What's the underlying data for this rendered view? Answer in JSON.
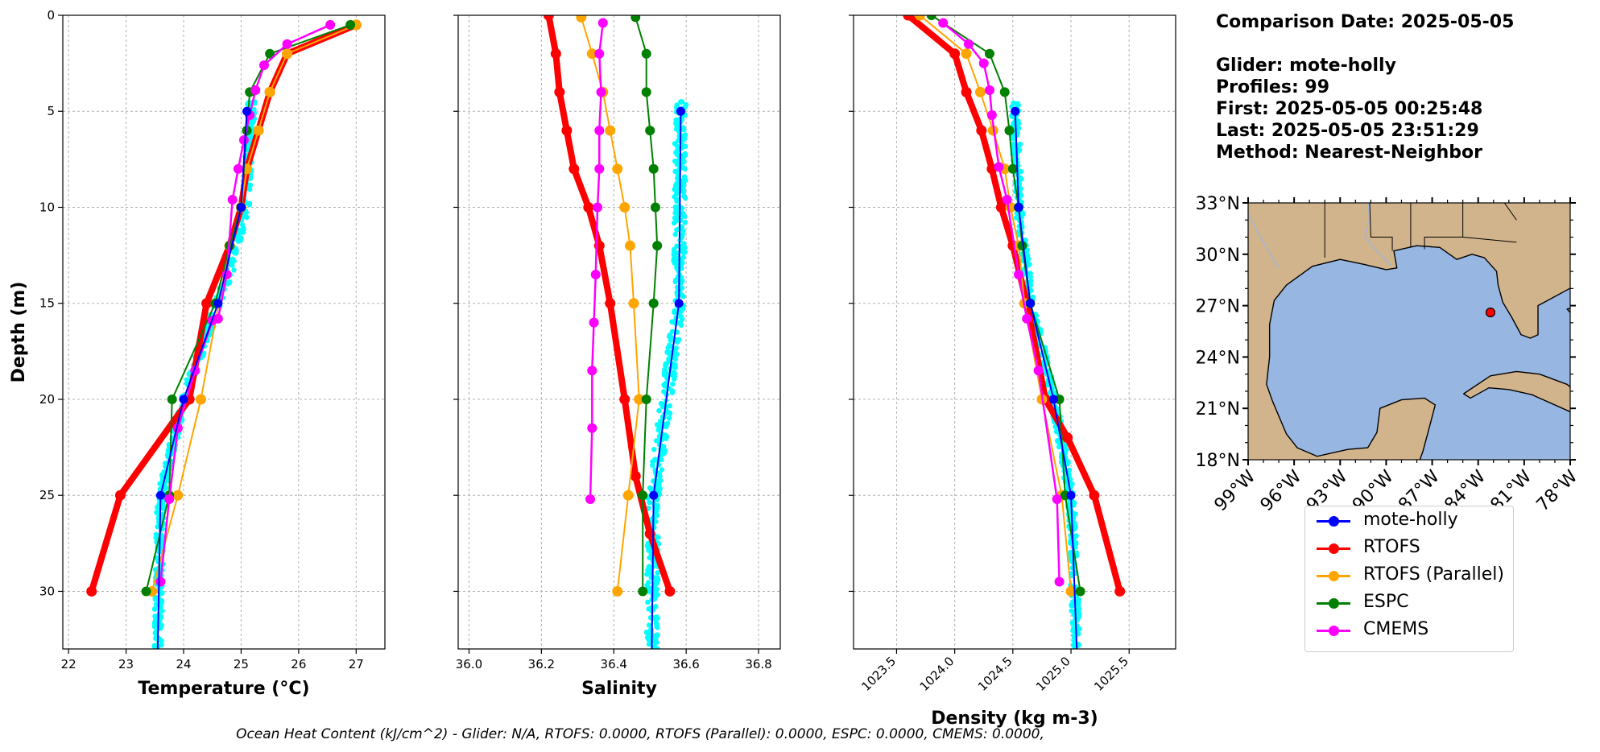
{
  "info": {
    "comparison_date": "Comparison Date: 2025-05-05",
    "glider": "Glider: mote-holly",
    "profiles": "Profiles: 99",
    "first": "First: 2025-05-05 00:25:48",
    "last": "Last: 2025-05-05 23:51:29",
    "method": "Method: Nearest-Neighbor"
  },
  "footer": "Ocean Heat Content (kJ/cm^2) - Glider: N/A,  RTOFS: 0.0000,  RTOFS (Parallel): 0.0000,  ESPC: 0.0000,  CMEMS: 0.0000,",
  "colors": {
    "mote_holly": "#0000ff",
    "rtofs": "#ff0000",
    "rtofs_parallel": "#ffa500",
    "espc": "#008000",
    "cmems": "#ff00ff",
    "glider_points": "#00ffff",
    "ocean": "#97b6e1",
    "land": "#d2b48c"
  },
  "legend": [
    {
      "name": "mote-holly",
      "color": "#0000ff"
    },
    {
      "name": "RTOFS",
      "color": "#ff0000"
    },
    {
      "name": "RTOFS (Parallel)",
      "color": "#ffa500"
    },
    {
      "name": "ESPC",
      "color": "#008000"
    },
    {
      "name": "CMEMS",
      "color": "#ff00ff"
    }
  ],
  "chart_data": [
    {
      "type": "line",
      "xlabel": "Temperature (°C)",
      "ylabel": "Depth (m)",
      "xlim": [
        21.9,
        27.5
      ],
      "ylim": [
        33,
        0
      ],
      "xticks": [
        22,
        23,
        24,
        25,
        26,
        27
      ],
      "yticks": [
        0,
        5,
        10,
        15,
        20,
        25,
        30
      ],
      "grid": true,
      "series": [
        {
          "name": "mote-holly",
          "x": [
            25.1,
            25.0,
            24.6,
            24.0,
            23.6,
            23.55
          ],
          "y": [
            5,
            10,
            15,
            20,
            25,
            33
          ]
        },
        {
          "name": "RTOFS",
          "x": [
            27.0,
            25.8,
            25.5,
            25.3,
            25.1,
            25.0,
            24.8,
            24.4,
            24.1,
            22.9,
            22.4
          ],
          "y": [
            0.5,
            2,
            4,
            6,
            8,
            10,
            12,
            15,
            20,
            25,
            30
          ]
        },
        {
          "name": "RTOFS (Parallel)",
          "x": [
            27.0,
            25.8,
            25.5,
            25.3,
            25.1,
            25.0,
            24.8,
            24.3,
            23.9,
            23.45
          ],
          "y": [
            0.5,
            2,
            4,
            6,
            8,
            10,
            12,
            20,
            25,
            30
          ]
        },
        {
          "name": "ESPC",
          "x": [
            26.9,
            25.5,
            25.15,
            25.1,
            25.0,
            24.8,
            24.55,
            23.8,
            23.75,
            23.35
          ],
          "y": [
            0.5,
            2,
            4,
            6,
            10,
            12,
            15,
            20,
            25,
            30
          ]
        },
        {
          "name": "CMEMS",
          "x": [
            26.55,
            25.8,
            25.4,
            25.25,
            25.15,
            25.05,
            24.95,
            24.85,
            24.75,
            24.6,
            24.5,
            24.2,
            23.9,
            23.75,
            23.6
          ],
          "y": [
            0.5,
            1.5,
            2.6,
            3.9,
            5.2,
            6.5,
            8.0,
            9.6,
            13.5,
            15.8,
            15.9,
            18.5,
            21.5,
            25.2,
            29.5
          ]
        }
      ]
    },
    {
      "type": "line",
      "xlabel": "Salinity",
      "ylim": [
        33,
        0
      ],
      "xlim": [
        35.97,
        36.86
      ],
      "xticks": [
        36.0,
        36.2,
        36.4,
        36.6,
        36.8
      ],
      "grid": true,
      "series": [
        {
          "name": "mote-holly",
          "x": [
            36.585,
            36.58,
            36.51,
            36.505
          ],
          "y": [
            5,
            15,
            25,
            33
          ]
        },
        {
          "name": "RTOFS",
          "x": [
            36.22,
            36.24,
            36.25,
            36.27,
            36.29,
            36.33,
            36.36,
            36.39,
            36.43,
            36.46,
            36.5,
            36.555
          ],
          "y": [
            0,
            2,
            4,
            6,
            8,
            10,
            12,
            15,
            20,
            24,
            27,
            30
          ]
        },
        {
          "name": "RTOFS (Parallel)",
          "x": [
            36.31,
            36.34,
            36.37,
            36.39,
            36.41,
            36.43,
            36.445,
            36.455,
            36.47,
            36.44,
            36.41
          ],
          "y": [
            0.1,
            2,
            4,
            6,
            8,
            10,
            12,
            15,
            20,
            25,
            30
          ]
        },
        {
          "name": "ESPC",
          "x": [
            36.46,
            36.49,
            36.49,
            36.5,
            36.51,
            36.515,
            36.52,
            36.51,
            36.49,
            36.48,
            36.48
          ],
          "y": [
            0.1,
            2,
            4,
            6,
            8,
            10,
            12,
            15,
            20,
            25,
            30
          ]
        },
        {
          "name": "CMEMS",
          "x": [
            36.37,
            36.36,
            36.365,
            36.36,
            36.36,
            36.355,
            36.35,
            36.345,
            36.34,
            36.34,
            36.335
          ],
          "y": [
            0.4,
            2,
            4,
            6,
            8,
            10,
            13.5,
            16,
            18.5,
            21.5,
            25.2
          ]
        }
      ]
    },
    {
      "type": "line",
      "xlabel": "Density (kg m-3)",
      "ylim": [
        33,
        0
      ],
      "xlim": [
        1023.13,
        1025.9
      ],
      "xticks": [
        1023.5,
        1024.0,
        1024.5,
        1025.0,
        1025.5
      ],
      "grid": true,
      "series": [
        {
          "name": "mote-holly",
          "x": [
            1024.52,
            1024.55,
            1024.65,
            1024.85,
            1025.0,
            1025.05
          ],
          "y": [
            5,
            10,
            15,
            20,
            25,
            33
          ]
        },
        {
          "name": "RTOFS",
          "x": [
            1023.6,
            1024.0,
            1024.1,
            1024.23,
            1024.32,
            1024.4,
            1024.5,
            1024.62,
            1024.78,
            1024.97,
            1025.2,
            1025.42
          ],
          "y": [
            0,
            2,
            4,
            6,
            8,
            10,
            12,
            15,
            20,
            22,
            25,
            30
          ]
        },
        {
          "name": "RTOFS (Parallel)",
          "x": [
            1023.7,
            1024.1,
            1024.22,
            1024.33,
            1024.43,
            1024.48,
            1024.55,
            1024.6,
            1024.75,
            1024.92,
            1025.0
          ],
          "y": [
            0,
            2,
            4,
            6,
            8,
            10,
            12,
            15,
            20,
            25,
            30
          ]
        },
        {
          "name": "ESPC",
          "x": [
            1023.8,
            1024.3,
            1024.43,
            1024.47,
            1024.5,
            1024.55,
            1024.58,
            1024.65,
            1024.9,
            1024.95,
            1025.08
          ],
          "y": [
            0,
            2,
            4,
            6,
            8,
            10,
            12,
            15,
            20,
            25,
            30
          ]
        },
        {
          "name": "CMEMS",
          "x": [
            1023.9,
            1024.12,
            1024.25,
            1024.3,
            1024.32,
            1024.38,
            1024.45,
            1024.55,
            1024.62,
            1024.72,
            1024.88,
            1024.9
          ],
          "y": [
            0.4,
            1.5,
            2.5,
            3.9,
            5.2,
            7.9,
            9.6,
            13.5,
            15.8,
            18.5,
            25.2,
            29.5
          ]
        }
      ]
    },
    {
      "type": "map",
      "region": "Gulf of Mexico",
      "lon_ticks": [
        "99°W",
        "96°W",
        "93°W",
        "90°W",
        "87°W",
        "84°W",
        "81°W",
        "78°W"
      ],
      "lat_ticks": [
        "18°N",
        "21°N",
        "24°N",
        "27°N",
        "30°N",
        "33°N"
      ],
      "lon_range": [
        -99,
        -78
      ],
      "lat_range": [
        18,
        33
      ],
      "marker": {
        "lon": -83.2,
        "lat": 26.6,
        "color": "#ff0000"
      }
    }
  ]
}
